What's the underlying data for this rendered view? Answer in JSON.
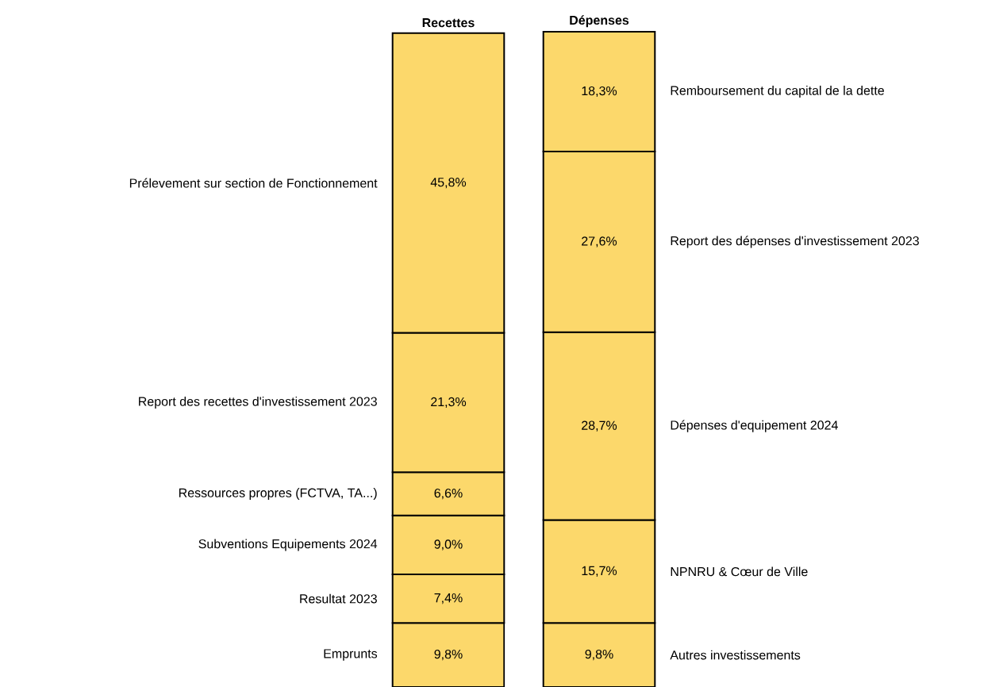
{
  "chart_data": {
    "type": "bar",
    "stacked": true,
    "categories": [
      "Recettes",
      "Dépenses"
    ],
    "series": [
      {
        "name": "Emprunts",
        "color": "#fcd86b",
        "values": [
          9.8,
          null
        ],
        "value_labels": [
          "9,8%",
          null
        ]
      },
      {
        "name": "Resultat 2023",
        "color": "#fcd86b",
        "values": [
          7.4,
          null
        ],
        "value_labels": [
          "7,4%",
          null
        ]
      },
      {
        "name": "Subventions Equipements 2024",
        "color": "#fcd86b",
        "values": [
          9.0,
          null
        ],
        "value_labels": [
          "9,0%",
          null
        ]
      },
      {
        "name": "Ressources propres (FCTVA, TA...)",
        "color": "#fcd86b",
        "values": [
          6.6,
          null
        ],
        "value_labels": [
          "6,6%",
          null
        ]
      },
      {
        "name": "Report des recettes d'investissement 2023",
        "color": "#fcd86b",
        "values": [
          21.3,
          null
        ],
        "value_labels": [
          "21,3%",
          null
        ]
      },
      {
        "name": "Prélevement sur section de Fonctionnement",
        "color": "#fcd86b",
        "values": [
          45.8,
          null
        ],
        "value_labels": [
          "45,8%",
          null
        ]
      },
      {
        "name": "Autres investissements",
        "color": "#fcd86b",
        "values": [
          null,
          9.8
        ],
        "value_labels": [
          null,
          "9,8%"
        ]
      },
      {
        "name": "NPNRU & Cœur de Ville",
        "color": "#fcd86b",
        "values": [
          null,
          15.7
        ],
        "value_labels": [
          null,
          "15,7%"
        ]
      },
      {
        "name": "Dépenses d'equipement 2024",
        "color": "#fcd86b",
        "values": [
          null,
          28.7
        ],
        "value_labels": [
          null,
          "28,7%"
        ]
      },
      {
        "name": "Report des dépenses d'investissement 2023",
        "color": "#fcd86b",
        "values": [
          null,
          27.6
        ],
        "value_labels": [
          null,
          "27,6%"
        ]
      },
      {
        "name": "Remboursement du capital de la dette",
        "color": "#fcd86b",
        "values": [
          null,
          18.3
        ],
        "value_labels": [
          null,
          "18,3%"
        ]
      }
    ]
  }
}
